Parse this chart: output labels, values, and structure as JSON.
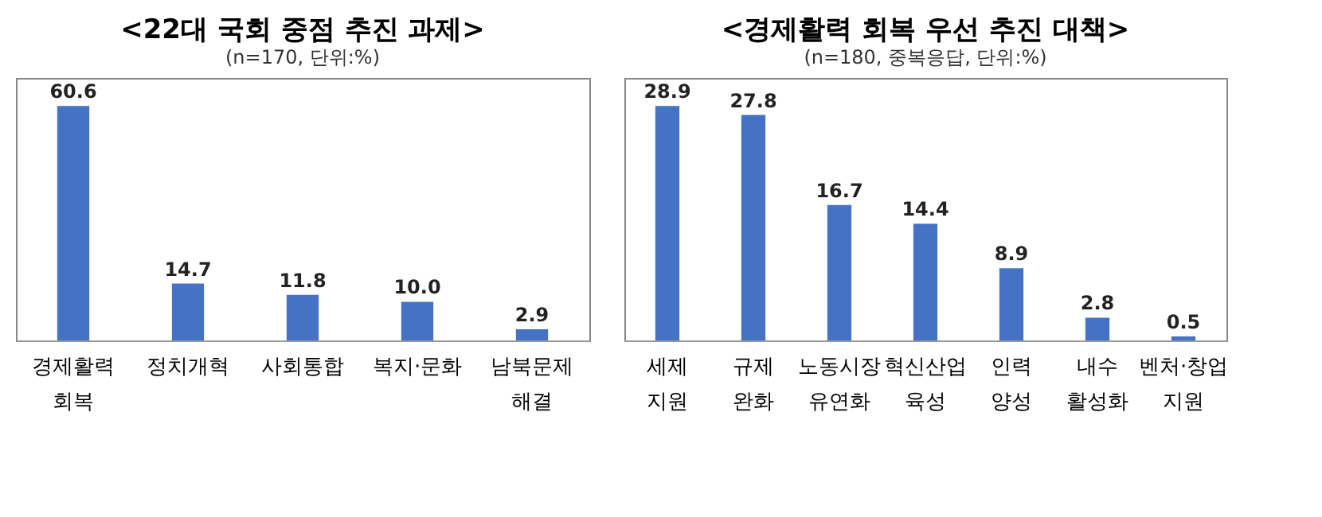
{
  "chart_data": [
    {
      "type": "bar",
      "title": "<22대 국회 중점 추진 과제>",
      "subtitle": "(n=170, 단위:%)",
      "categories": [
        "경제활력 회복",
        "정치개혁",
        "사회통합",
        "복지·문화",
        "남북문제 해결"
      ],
      "values": [
        60.6,
        14.7,
        11.8,
        10.0,
        2.9
      ],
      "value_labels": [
        "60.6",
        "14.7",
        "11.8",
        "10.0",
        "2.9"
      ],
      "color": "#4472c4"
    },
    {
      "type": "bar",
      "title": "<경제활력 회복 우선 추진 대책>",
      "subtitle": "(n=180, 중복응답, 단위:%)",
      "categories": [
        "세제 지원",
        "규제 완화",
        "노동시장 유연화",
        "혁신산업 육성",
        "인력 양성",
        "내수 활성화",
        "벤처·창업 지원"
      ],
      "values": [
        28.9,
        27.8,
        16.7,
        14.4,
        8.9,
        2.8,
        0.5
      ],
      "value_labels": [
        "28.9",
        "27.8",
        "16.7",
        "14.4",
        "8.9",
        "2.8",
        "0.5"
      ],
      "color": "#4472c4"
    }
  ]
}
